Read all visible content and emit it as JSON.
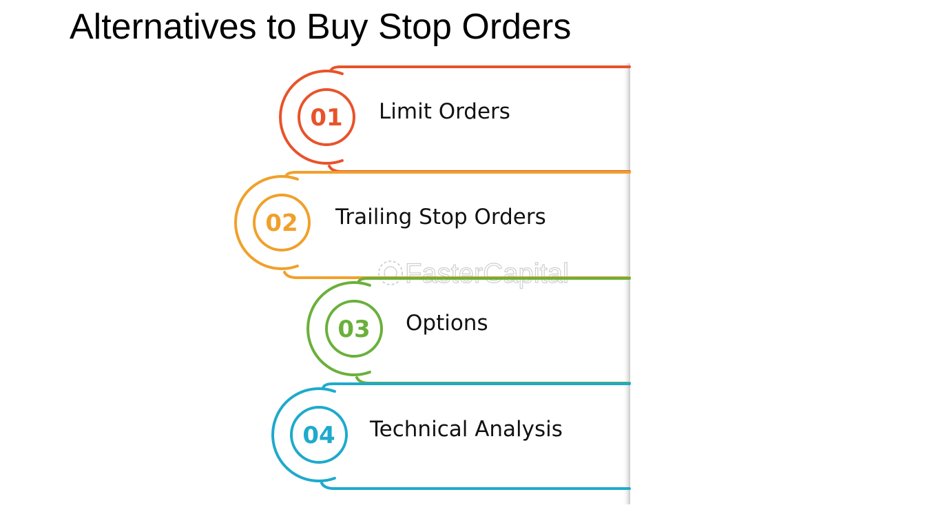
{
  "title": "Alternatives to Buy Stop Orders",
  "watermark": "FasterCapital",
  "steps": [
    {
      "number": "01",
      "label": "Limit Orders",
      "color": "#e8532a"
    },
    {
      "number": "02",
      "label": "Trailing Stop Orders",
      "color": "#f0a02a"
    },
    {
      "number": "03",
      "label": "Options",
      "color": "#6ab03a"
    },
    {
      "number": "04",
      "label": "Technical Analysis",
      "color": "#1eaacc"
    }
  ]
}
